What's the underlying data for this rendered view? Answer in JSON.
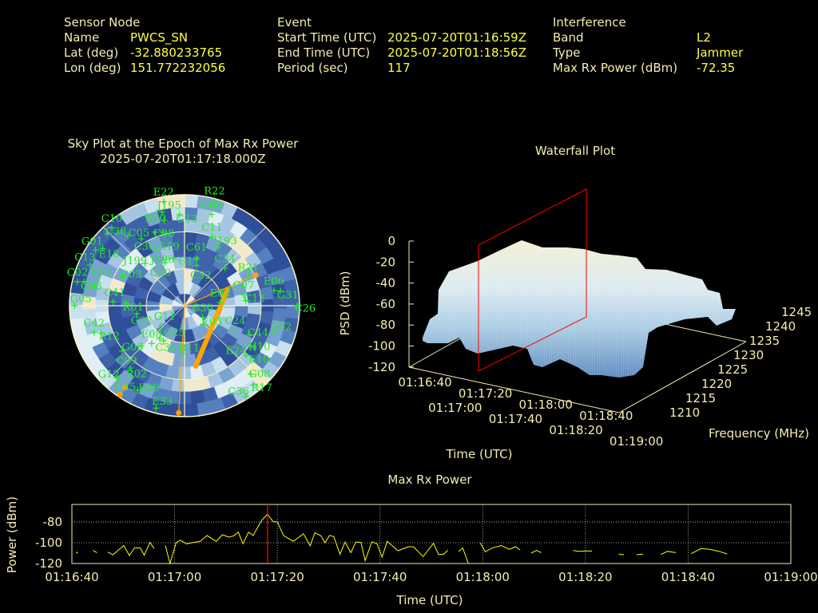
{
  "header": {
    "sensor": {
      "title": "Sensor Node",
      "name_label": "Name",
      "name": "PWCS_SN",
      "lat_label": "Lat (deg)",
      "lat": "-32.880233765",
      "lon_label": "Lon (deg)",
      "lon": "151.772232056"
    },
    "event": {
      "title": "Event",
      "start_label": "Start Time (UTC)",
      "start": "2025-07-20T01:16:59Z",
      "end_label": "End Time (UTC)",
      "end": "2025-07-20T01:18:56Z",
      "period_label": "Period (sec)",
      "period": "117"
    },
    "interference": {
      "title": "Interference",
      "band_label": "Band",
      "band": "L2",
      "type_label": "Type",
      "type": "Jammer",
      "power_label": "Max Rx Power (dBm)",
      "power": "-72.35"
    }
  },
  "colors": {
    "label": "#f3ecb0",
    "value": "#ffff40",
    "satellite": "#22ee22",
    "interference": "#ffa500",
    "marker": "#ff0000",
    "power_line": "#ffff00"
  },
  "chart_data": [
    {
      "type": "scatter",
      "title": "Sky Plot at the Epoch of Max Rx Power",
      "subtitle": "2025-07-20T01:17:18.000Z",
      "projection": "polar (azimuth deg clockwise from north, elevation deg)",
      "satellites": [
        {
          "id": "E22",
          "az": 349,
          "el": 4
        },
        {
          "id": "J195",
          "az": 347,
          "el": 12
        },
        {
          "id": "G13",
          "az": 357,
          "el": 16
        },
        {
          "id": "G09",
          "az": 16,
          "el": 13
        },
        {
          "id": "R22",
          "az": 16,
          "el": 5
        },
        {
          "id": "R20",
          "az": 347,
          "el": 19
        },
        {
          "id": "C10",
          "az": 318,
          "el": 5
        },
        {
          "id": "C38",
          "az": 314,
          "el": 6
        },
        {
          "id": "C05",
          "az": 322,
          "el": 18
        },
        {
          "id": "C30",
          "az": 328,
          "el": 26
        },
        {
          "id": "C08",
          "az": 339,
          "el": 26
        },
        {
          "id": "G19",
          "az": 344,
          "el": 28
        },
        {
          "id": "C11",
          "az": 21,
          "el": 30
        },
        {
          "id": "J193",
          "az": 29,
          "el": 36
        },
        {
          "id": "J196",
          "az": 333,
          "el": 40
        },
        {
          "id": "G01",
          "az": 303,
          "el": 7
        },
        {
          "id": "E18",
          "az": 306,
          "el": 11
        },
        {
          "id": "G17",
          "az": 347,
          "el": 51
        },
        {
          "id": "C60",
          "az": 336,
          "el": 52
        },
        {
          "id": "C61",
          "az": 14,
          "el": 51
        },
        {
          "id": "C32",
          "az": 16,
          "el": 56
        },
        {
          "id": "C34",
          "az": 46,
          "el": 46
        },
        {
          "id": "J199",
          "az": 318,
          "el": 44
        },
        {
          "id": "C13",
          "az": 294,
          "el": 9
        },
        {
          "id": "C03",
          "az": 296,
          "el": 36
        },
        {
          "id": "C02",
          "az": 283,
          "el": 4
        },
        {
          "id": "G03",
          "az": 284,
          "el": 9
        },
        {
          "id": "E13",
          "az": 283,
          "el": 18
        },
        {
          "id": "R21",
          "az": 65,
          "el": 35
        },
        {
          "id": "E06",
          "az": 80,
          "el": 19
        },
        {
          "id": "G31",
          "az": 81,
          "el": 14
        },
        {
          "id": "G05",
          "az": 270,
          "el": 4
        },
        {
          "id": "C41",
          "az": 273,
          "el": 34
        },
        {
          "id": "R01",
          "az": 273,
          "el": 44
        },
        {
          "id": "G22",
          "az": 260,
          "el": 52
        },
        {
          "id": "G07",
          "az": 79,
          "el": 43
        },
        {
          "id": "C12",
          "az": 85,
          "el": 42
        },
        {
          "id": "E02",
          "az": 85,
          "el": 62
        },
        {
          "id": "C26",
          "az": 90,
          "el": 2
        },
        {
          "id": "G30",
          "az": 124,
          "el": 73
        },
        {
          "id": "E03",
          "az": 136,
          "el": 69
        },
        {
          "id": "G11",
          "az": 229,
          "el": 66
        },
        {
          "id": "C24",
          "az": 117,
          "el": 47
        },
        {
          "id": "C44",
          "az": 115,
          "el": 34
        },
        {
          "id": "G02",
          "az": 107,
          "el": 17
        },
        {
          "id": "C42",
          "az": 253,
          "el": 16
        },
        {
          "id": "R12",
          "az": 251,
          "el": 21
        },
        {
          "id": "E08",
          "az": 220,
          "el": 50
        },
        {
          "id": "C35",
          "az": 216,
          "el": 57
        },
        {
          "id": "C25",
          "az": 210,
          "el": 57
        },
        {
          "id": "G06",
          "az": 226,
          "el": 43
        },
        {
          "id": "C09",
          "az": 233,
          "el": 29
        },
        {
          "id": "R11",
          "az": 183,
          "el": 51
        },
        {
          "id": "H10",
          "az": 122,
          "el": 29
        },
        {
          "id": "E10",
          "az": 122,
          "el": 26
        },
        {
          "id": "E24",
          "az": 130,
          "el": 27
        },
        {
          "id": "R02",
          "az": 220,
          "el": 24
        },
        {
          "id": "G08",
          "az": 137,
          "el": 14
        },
        {
          "id": "R17",
          "az": 140,
          "el": 6
        },
        {
          "id": "C36",
          "az": 147,
          "el": 2
        },
        {
          "id": "G12",
          "az": 222,
          "el": 11
        },
        {
          "id": "C15",
          "az": 221,
          "el": 12
        },
        {
          "id": "E26",
          "az": 208,
          "el": 12
        },
        {
          "id": "E33",
          "az": 195,
          "el": 4
        }
      ],
      "interference_points": [
        {
          "az": 66,
          "el": 29
        },
        {
          "az": 183,
          "el": 3
        },
        {
          "az": 215,
          "el": 9
        },
        {
          "az": 215,
          "el": 2
        }
      ],
      "interference_track": [
        {
          "az": 69,
          "el": 54
        },
        {
          "az": 170,
          "el": 40
        }
      ],
      "elevation_rings": [
        30,
        60
      ]
    },
    {
      "type": "surface",
      "title": "Waterfall Plot",
      "xlabel": "Time (UTC)",
      "ylabel": "Frequency (MHz)",
      "zlabel": "PSD (dBm)",
      "x_ticks": [
        "01:16:40",
        "01:17:00",
        "01:17:20",
        "01:17:40",
        "01:18:00",
        "01:18:20",
        "01:18:40",
        "01:19:00"
      ],
      "y_ticks": [
        "1210",
        "1215",
        "1220",
        "1225",
        "1230",
        "1235",
        "1240",
        "1245"
      ],
      "z_ticks": [
        "0",
        "-20",
        "-40",
        "-60",
        "-80",
        "-100",
        "-120"
      ],
      "zlim": [
        -120,
        0
      ],
      "marker_time": "01:17:18"
    },
    {
      "type": "line",
      "title": "Max Rx Power",
      "xlabel": "Time (UTC)",
      "ylabel": "Power (dBm)",
      "x_ticks": [
        "01:16:40",
        "01:17:00",
        "01:17:20",
        "01:17:40",
        "01:18:00",
        "01:18:20",
        "01:18:40",
        "01:19:00"
      ],
      "y_ticks": [
        "-80",
        "-100",
        "-120"
      ],
      "xlim_seconds_from_start": [
        0,
        140
      ],
      "ylim": [
        -120,
        -63
      ],
      "marker_seconds": 38.1,
      "segments": [
        [
          [
            1.0,
            -109.5
          ]
        ],
        [
          [
            4.1,
            -107.4
          ],
          [
            4.9,
            -109.5
          ]
        ],
        [
          [
            7.0,
            -109
          ],
          [
            8.0,
            -111.5
          ],
          [
            10.1,
            -102.6
          ],
          [
            11.2,
            -112.3
          ],
          [
            12.2,
            -104.9
          ],
          [
            13.3,
            -104.9
          ],
          [
            14.1,
            -112
          ],
          [
            15.2,
            -99.7
          ],
          [
            16.0,
            -105.6
          ]
        ],
        [
          [
            18.2,
            -102.6
          ],
          [
            19.1,
            -120
          ],
          [
            20.3,
            -100
          ],
          [
            21.1,
            -97.4
          ],
          [
            22.3,
            -101
          ],
          [
            23.7,
            -99.7
          ],
          [
            25.0,
            -98.7
          ],
          [
            26.3,
            -93
          ],
          [
            28.1,
            -98.7
          ],
          [
            29.3,
            -92.3
          ],
          [
            30.6,
            -94.6
          ],
          [
            31.5,
            -93.3
          ],
          [
            32.4,
            -89.7
          ],
          [
            33.3,
            -101
          ],
          [
            34.4,
            -89.7
          ],
          [
            35.3,
            -93
          ],
          [
            36.9,
            -78.7
          ],
          [
            38.1,
            -72.3
          ],
          [
            39.2,
            -79.7
          ],
          [
            40.0,
            -79.7
          ],
          [
            41.2,
            -93
          ],
          [
            43.1,
            -98.5
          ],
          [
            45.1,
            -91.3
          ],
          [
            46.4,
            -103
          ],
          [
            47.3,
            -90.3
          ],
          [
            48.5,
            -93.3
          ],
          [
            49.3,
            -100
          ],
          [
            50.2,
            -92.8
          ],
          [
            51.0,
            -94.1
          ],
          [
            52.2,
            -111
          ],
          [
            53.2,
            -99.2
          ],
          [
            54.3,
            -109.5
          ],
          [
            55.3,
            -99.2
          ],
          [
            56.3,
            -99.7
          ],
          [
            57.1,
            -117.2
          ],
          [
            58.4,
            -99.2
          ],
          [
            59.4,
            -100.8
          ],
          [
            60.4,
            -113.8
          ],
          [
            61.4,
            -98.7
          ],
          [
            63.5,
            -107.7
          ],
          [
            65.5,
            -103.8
          ],
          [
            66.5,
            -103.8
          ],
          [
            68.4,
            -113.3
          ],
          [
            70.4,
            -100.5
          ],
          [
            71.4,
            -111.3
          ],
          [
            72.4,
            -111
          ],
          [
            73.2,
            -107.2
          ]
        ],
        [
          [
            75.3,
            -108.5
          ],
          [
            76.1,
            -105
          ],
          [
            77.2,
            -120
          ]
        ],
        [
          [
            79.5,
            -100
          ],
          [
            80.5,
            -108.7
          ],
          [
            81.8,
            -105.1
          ],
          [
            83.6,
            -102.6
          ],
          [
            85.2,
            -106.4
          ],
          [
            86.4,
            -103.8
          ],
          [
            87.3,
            -107
          ]
        ],
        [
          [
            89.4,
            -110
          ],
          [
            90.5,
            -107.4
          ],
          [
            91.4,
            -109.5
          ]
        ],
        [
          [
            97.6,
            -107.4
          ],
          [
            98.7,
            -108.2
          ],
          [
            100,
            -108
          ],
          [
            101.3,
            -108
          ]
        ],
        [
          [
            106.5,
            -111
          ],
          [
            107.5,
            -111.5
          ]
        ],
        [
          [
            110,
            -111.5
          ],
          [
            111.2,
            -111
          ]
        ],
        [
          [
            114.7,
            -111.3
          ],
          [
            116.0,
            -108.2
          ],
          [
            117.6,
            -109.5
          ]
        ],
        [
          [
            120.6,
            -110.5
          ],
          [
            122.5,
            -105.6
          ],
          [
            124.2,
            -106.4
          ],
          [
            126,
            -108.2
          ],
          [
            127.6,
            -110.8
          ]
        ]
      ]
    }
  ]
}
